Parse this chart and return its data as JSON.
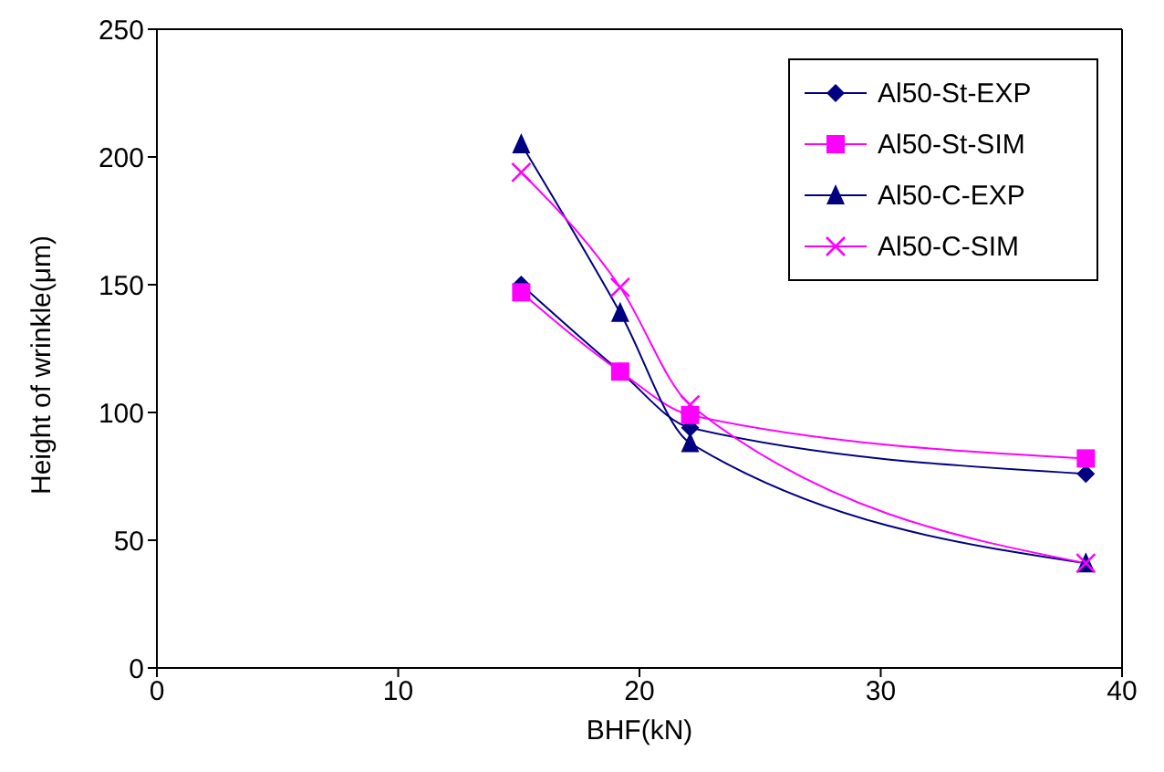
{
  "chart_data": {
    "type": "line",
    "xlabel": "BHF(kN)",
    "ylabel": "Height of wrinkle(μm)",
    "x": [
      15.1,
      19.2,
      22.1,
      38.5
    ],
    "series": [
      {
        "name": "Al50-St-EXP",
        "color": "#000080",
        "marker": "diamond",
        "values": [
          150,
          116,
          94,
          76
        ]
      },
      {
        "name": "Al50-St-SIM",
        "color": "#ff00ff",
        "marker": "square",
        "values": [
          147,
          116,
          99,
          82
        ]
      },
      {
        "name": "Al50-C-EXP",
        "color": "#000080",
        "marker": "triangle",
        "values": [
          205,
          139,
          88,
          41
        ]
      },
      {
        "name": "Al50-C-SIM",
        "color": "#ff00ff",
        "marker": "cross",
        "values": [
          194,
          149,
          103,
          41
        ]
      }
    ],
    "xlim": [
      0,
      40
    ],
    "xticks": [
      0,
      10,
      20,
      30,
      40
    ],
    "ylim": [
      0,
      250
    ],
    "yticks": [
      0,
      50,
      100,
      150,
      200,
      250
    ],
    "grid": false,
    "legend": "top right",
    "line_style": "solid"
  }
}
